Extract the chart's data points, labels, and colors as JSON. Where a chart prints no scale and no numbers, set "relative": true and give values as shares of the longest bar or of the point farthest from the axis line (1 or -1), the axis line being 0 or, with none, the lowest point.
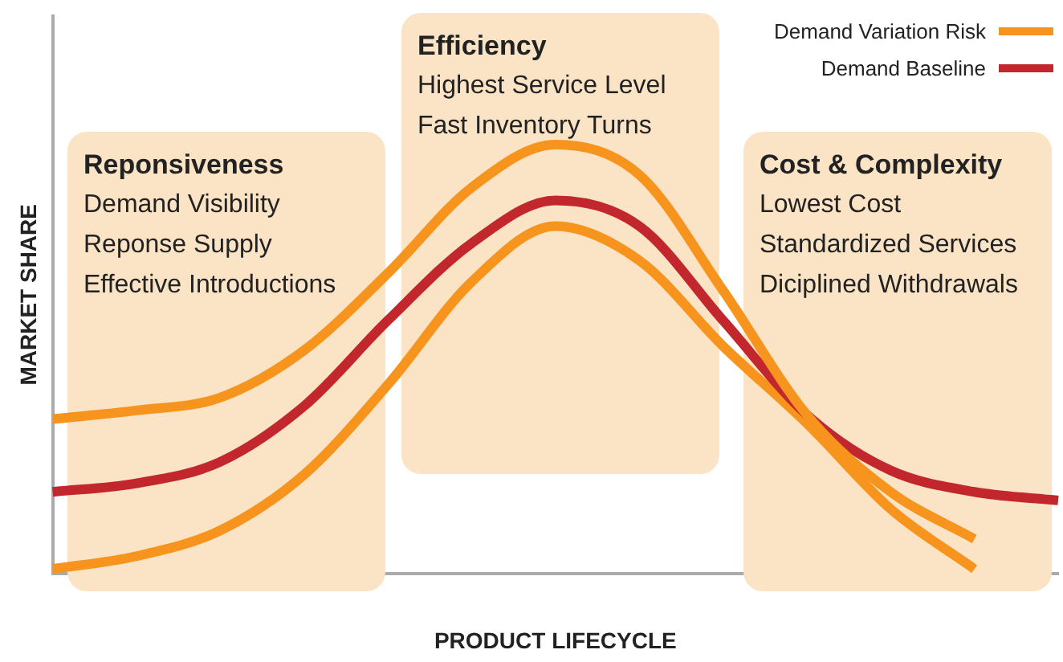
{
  "chart_data": {
    "type": "line",
    "relative": true,
    "xlabel": "PRODUCT LIFECYCLE",
    "ylabel": "MARKET SHARE",
    "legend": "top right",
    "marker": "none",
    "line_style": "solid",
    "grid": false,
    "categories": [
      null,
      null,
      null,
      null,
      null,
      null,
      null,
      null,
      null,
      null,
      null,
      null,
      null
    ],
    "series": [
      {
        "name": "Demand Variation Risk",
        "color": "#f7941d",
        "values": [
          0.36,
          0.38,
          0.41,
          0.52,
          0.7,
          0.9,
          1.0,
          0.93,
          0.66,
          0.37,
          0.19,
          0.08,
          null
        ]
      },
      {
        "name": "Demand Baseline",
        "color": "#c1272d",
        "values": [
          0.19,
          0.21,
          0.26,
          0.39,
          0.59,
          0.77,
          0.87,
          0.81,
          0.59,
          0.37,
          0.24,
          0.19,
          0.17
        ]
      },
      {
        "color": "#f7941d",
        "values": [
          0.01,
          0.04,
          0.1,
          0.23,
          0.44,
          0.68,
          0.81,
          0.73,
          0.53,
          0.35,
          0.15,
          0.01,
          null
        ]
      }
    ],
    "annotations": [
      "Reponsiveness\nDemand Visibility\nReponse Supply\nEffective Introductions",
      "Efficiency\nHighest Service Level\nFast Inventory Turns",
      "Cost & Complexity\nLowest Cost\nStandardized Services\nDiciplined Withdrawals"
    ]
  }
}
